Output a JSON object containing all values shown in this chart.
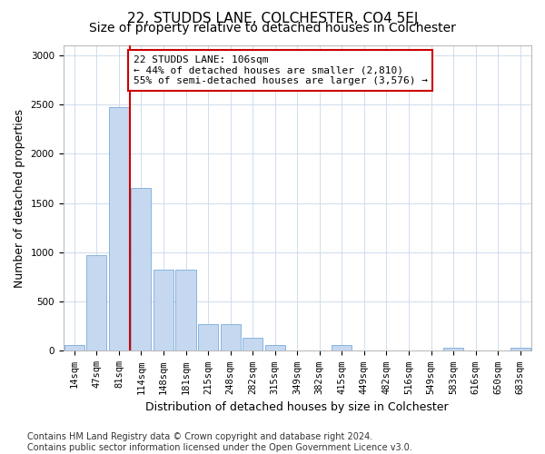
{
  "title": "22, STUDDS LANE, COLCHESTER, CO4 5EJ",
  "subtitle": "Size of property relative to detached houses in Colchester",
  "xlabel": "Distribution of detached houses by size in Colchester",
  "ylabel": "Number of detached properties",
  "categories": [
    "14sqm",
    "47sqm",
    "81sqm",
    "114sqm",
    "148sqm",
    "181sqm",
    "215sqm",
    "248sqm",
    "282sqm",
    "315sqm",
    "349sqm",
    "382sqm",
    "415sqm",
    "449sqm",
    "482sqm",
    "516sqm",
    "549sqm",
    "583sqm",
    "616sqm",
    "650sqm",
    "683sqm"
  ],
  "values": [
    60,
    975,
    2470,
    1650,
    820,
    820,
    270,
    270,
    130,
    60,
    0,
    0,
    60,
    0,
    0,
    0,
    0,
    30,
    0,
    0,
    30
  ],
  "bar_color": "#c5d8f0",
  "bar_edge_color": "#7aabdb",
  "vline_color": "#cc0000",
  "annotation_text": "22 STUDDS LANE: 106sqm\n← 44% of detached houses are smaller (2,810)\n55% of semi-detached houses are larger (3,576) →",
  "annotation_box_color": "#ffffff",
  "annotation_box_edge": "#cc0000",
  "ylim": [
    0,
    3100
  ],
  "yticks": [
    0,
    500,
    1000,
    1500,
    2000,
    2500,
    3000
  ],
  "footer": "Contains HM Land Registry data © Crown copyright and database right 2024.\nContains public sector information licensed under the Open Government Licence v3.0.",
  "title_fontsize": 11,
  "subtitle_fontsize": 10,
  "xlabel_fontsize": 9,
  "ylabel_fontsize": 9,
  "tick_fontsize": 7.5,
  "footer_fontsize": 7,
  "bg_color": "#ffffff",
  "grid_color": "#c8d8ea"
}
